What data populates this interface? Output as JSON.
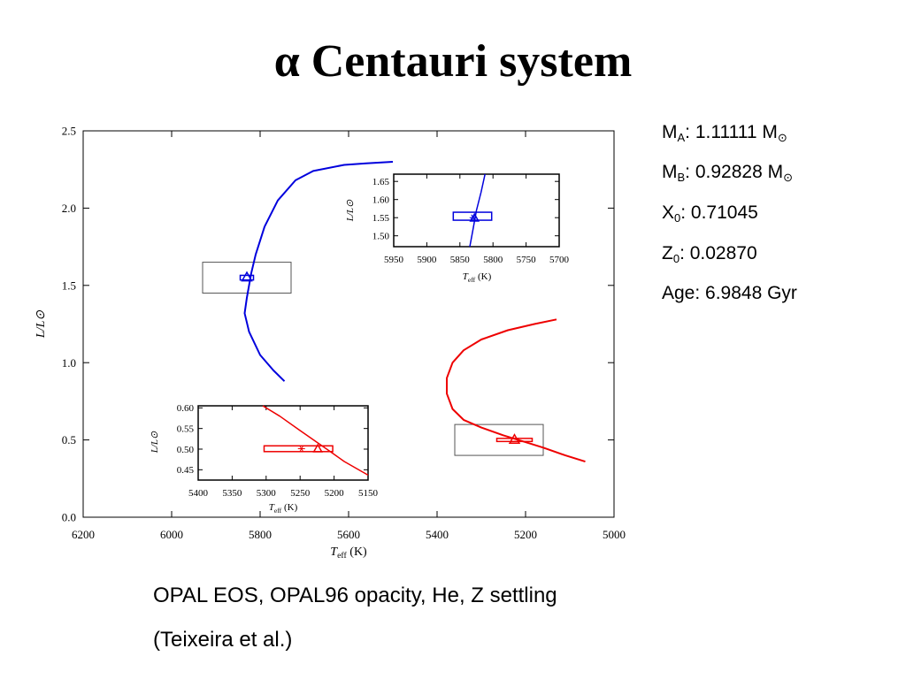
{
  "title": "α Centauri system",
  "params": [
    {
      "sym": "M",
      "sub": "A",
      "value": ": 1.11111 M",
      "unit_sub": "⊙"
    },
    {
      "sym": "M",
      "sub": "B",
      "value": ": 0.92828 M",
      "unit_sub": "⊙"
    },
    {
      "sym": "X",
      "sub": "0",
      "value": ":  0.71045",
      "unit_sub": ""
    },
    {
      "sym": "Z",
      "sub": "0",
      "value": ":   0.02870",
      "unit_sub": ""
    },
    {
      "sym": "Age:",
      "sub": "",
      "value": "   6.9848 Gyr",
      "unit_sub": ""
    }
  ],
  "caption": {
    "line1": "OPAL EOS, OPAL96 opacity, He, Z settling",
    "line2": "(Teixeira et al.)"
  },
  "chart_data": [
    {
      "id": "main",
      "type": "line",
      "xlabel": "T_eff (K)",
      "ylabel": "L/L⊙",
      "xlim": [
        6200,
        5000
      ],
      "ylim": [
        0,
        2.5
      ],
      "x_ticks": [
        6200,
        6000,
        5800,
        5600,
        5400,
        5200,
        5000
      ],
      "y_ticks": [
        0.0,
        0.5,
        1.0,
        1.5,
        2.0,
        2.5
      ],
      "x_tick_labels": [
        "6200",
        "6000",
        "5800",
        "5600",
        "5400",
        "5200",
        "5000"
      ],
      "y_tick_labels": [
        "0.0",
        "0.5",
        "1.0",
        "1.5",
        "2.0",
        "2.5"
      ],
      "series": [
        {
          "color": "#0000dd",
          "points": [
            [
              5745,
              0.88
            ],
            [
              5770,
              0.95
            ],
            [
              5800,
              1.05
            ],
            [
              5825,
              1.2
            ],
            [
              5835,
              1.32
            ],
            [
              5830,
              1.42
            ],
            [
              5825,
              1.5
            ],
            [
              5820,
              1.58
            ],
            [
              5810,
              1.7
            ],
            [
              5790,
              1.88
            ],
            [
              5760,
              2.05
            ],
            [
              5720,
              2.18
            ],
            [
              5680,
              2.24
            ],
            [
              5610,
              2.28
            ],
            [
              5560,
              2.29
            ],
            [
              5500,
              2.3
            ]
          ]
        },
        {
          "color": "#ee0000",
          "points": [
            [
              5065,
              0.36
            ],
            [
              5110,
              0.4
            ],
            [
              5160,
              0.45
            ],
            [
              5205,
              0.49
            ],
            [
              5250,
              0.53
            ],
            [
              5300,
              0.58
            ],
            [
              5340,
              0.63
            ],
            [
              5365,
              0.7
            ],
            [
              5378,
              0.8
            ],
            [
              5378,
              0.9
            ],
            [
              5365,
              1.0
            ],
            [
              5340,
              1.08
            ],
            [
              5300,
              1.15
            ],
            [
              5240,
              1.21
            ],
            [
              5180,
              1.25
            ],
            [
              5130,
              1.28
            ]
          ]
        }
      ],
      "markers": [
        {
          "star": "A",
          "teff": 5830,
          "lum": 1.55,
          "err_teff": 15,
          "err_lum": 0.015,
          "color": "#0000dd"
        },
        {
          "star": "B",
          "teff": 5225,
          "lum": 0.5,
          "err_teff": 40,
          "err_lum": 0.01,
          "color": "#ee0000"
        }
      ],
      "zoom_boxes": [
        {
          "xlim": [
            5930,
            5730
          ],
          "ylim": [
            1.45,
            1.65
          ]
        },
        {
          "xlim": [
            5360,
            5160
          ],
          "ylim": [
            0.4,
            0.6
          ]
        }
      ]
    },
    {
      "id": "inset-A",
      "type": "line",
      "xlabel": "T_eff (K)",
      "ylabel": "L/L⊙",
      "xlim": [
        5950,
        5700
      ],
      "ylim": [
        1.47,
        1.67
      ],
      "x_ticks": [
        5950,
        5900,
        5850,
        5800,
        5750,
        5700
      ],
      "y_ticks": [
        1.5,
        1.55,
        1.6,
        1.65
      ],
      "x_tick_labels": [
        "5950",
        "5900",
        "5850",
        "5800",
        "5750",
        "5700"
      ],
      "y_tick_labels": [
        "1.50",
        "1.55",
        "1.60",
        "1.65"
      ],
      "series": [
        {
          "color": "#0000dd",
          "points": [
            [
              5835,
              1.47
            ],
            [
              5830,
              1.52
            ],
            [
              5825,
              1.57
            ],
            [
              5818,
              1.62
            ],
            [
              5812,
              1.67
            ]
          ]
        }
      ],
      "error_box": {
        "teff_min": 5802,
        "teff_max": 5860,
        "lum_min": 1.543,
        "lum_max": 1.565
      },
      "star_marker": {
        "teff": 5830,
        "lum": 1.55
      },
      "triangle_marker": {
        "teff": 5828,
        "lum": 1.548
      },
      "color": "#0000dd"
    },
    {
      "id": "inset-B",
      "type": "line",
      "xlabel": "T_eff (K)",
      "ylabel": "L/L⊙",
      "xlim": [
        5400,
        5150
      ],
      "ylim": [
        0.425,
        0.605
      ],
      "x_ticks": [
        5400,
        5350,
        5300,
        5250,
        5200,
        5150
      ],
      "y_ticks": [
        0.45,
        0.5,
        0.55,
        0.6
      ],
      "x_tick_labels": [
        "5400",
        "5350",
        "5300",
        "5250",
        "5200",
        "5150"
      ],
      "y_tick_labels": [
        "0.45",
        "0.50",
        "0.55",
        "0.60"
      ],
      "series": [
        {
          "color": "#ee0000",
          "points": [
            [
              5305,
              0.605
            ],
            [
              5280,
              0.58
            ],
            [
              5250,
              0.545
            ],
            [
              5215,
              0.505
            ],
            [
              5185,
              0.47
            ],
            [
              5150,
              0.437
            ]
          ]
        }
      ],
      "error_box": {
        "teff_min": 5202,
        "teff_max": 5303,
        "lum_min": 0.494,
        "lum_max": 0.508
      },
      "star_marker": {
        "teff": 5248,
        "lum": 0.501
      },
      "triangle_marker": {
        "teff": 5224,
        "lum": 0.5
      },
      "color": "#ee0000"
    }
  ]
}
